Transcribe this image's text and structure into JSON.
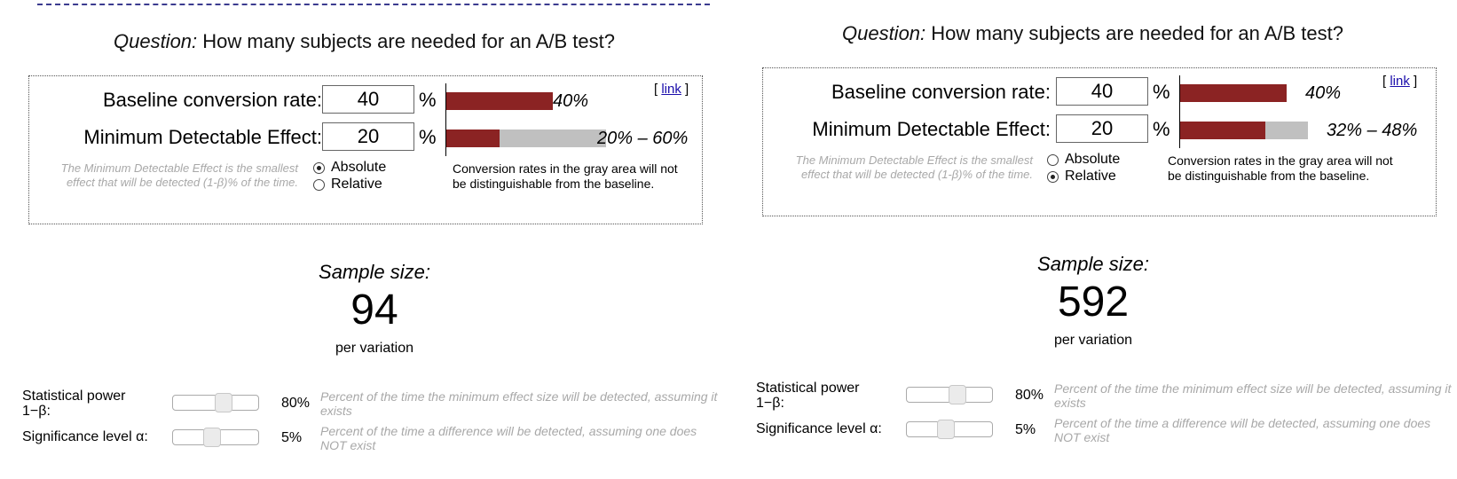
{
  "colors": {
    "bar_red": "#8b2323",
    "bar_gray": "#c0c0c0",
    "link": "#1a0dab",
    "hint": "#a8a8a8"
  },
  "calculators": [
    {
      "question_prefix": "Question:",
      "question_text": "How many subjects are needed for an A/B test?",
      "link_open": "[",
      "link_text": "link",
      "link_close": "]",
      "baseline_label": "Baseline conversion rate:",
      "baseline_value": "40",
      "baseline_unit": "%",
      "baseline_range_label": "40%",
      "baseline_fraction": 0.4,
      "mde_label": "Minimum Detectable Effect:",
      "mde_value": "20",
      "mde_unit": "%",
      "mde_range_label": "20% – 60%",
      "mde_range": [
        0.2,
        0.6
      ],
      "mde_hint": "The Minimum Detectable Effect is the smallest effect that will be detected (1-β)% of the time.",
      "mode_options": [
        "Absolute",
        "Relative"
      ],
      "mode_selected": "Absolute",
      "gray_note": "Conversion rates in the gray area will not be distinguishable from the baseline.",
      "sample_size_title": "Sample size:",
      "sample_size_value": "94",
      "sample_size_sub": "per variation",
      "power_label": "Statistical power 1−β:",
      "power_value": "80%",
      "power_fraction": 0.8,
      "power_desc": "Percent of the time the minimum effect size will be detected, assuming it exists",
      "significance_label": "Significance level α:",
      "significance_value": "5%",
      "significance_fraction": 0.05,
      "significance_desc": "Percent of the time a difference will be detected, assuming one does NOT exist"
    },
    {
      "question_prefix": "Question:",
      "question_text": "How many subjects are needed for an A/B test?",
      "link_open": "[",
      "link_text": "link",
      "link_close": "]",
      "baseline_label": "Baseline conversion rate:",
      "baseline_value": "40",
      "baseline_unit": "%",
      "baseline_range_label": "40%",
      "baseline_fraction": 0.4,
      "mde_label": "Minimum Detectable Effect:",
      "mde_value": "20",
      "mde_unit": "%",
      "mde_range_label": "32% – 48%",
      "mde_range": [
        0.32,
        0.48
      ],
      "mde_hint": "The Minimum Detectable Effect is the smallest effect that will be detected (1-β)% of the time.",
      "mode_options": [
        "Absolute",
        "Relative"
      ],
      "mode_selected": "Relative",
      "gray_note": "Conversion rates in the gray area will not be distinguishable from the baseline.",
      "sample_size_title": "Sample size:",
      "sample_size_value": "592",
      "sample_size_sub": "per variation",
      "power_label": "Statistical power 1−β:",
      "power_value": "80%",
      "power_fraction": 0.8,
      "power_desc": "Percent of the time the minimum effect size will be detected, assuming it exists",
      "significance_label": "Significance level α:",
      "significance_value": "5%",
      "significance_fraction": 0.05,
      "significance_desc": "Percent of the time a difference will be detected, assuming one does NOT exist"
    }
  ]
}
